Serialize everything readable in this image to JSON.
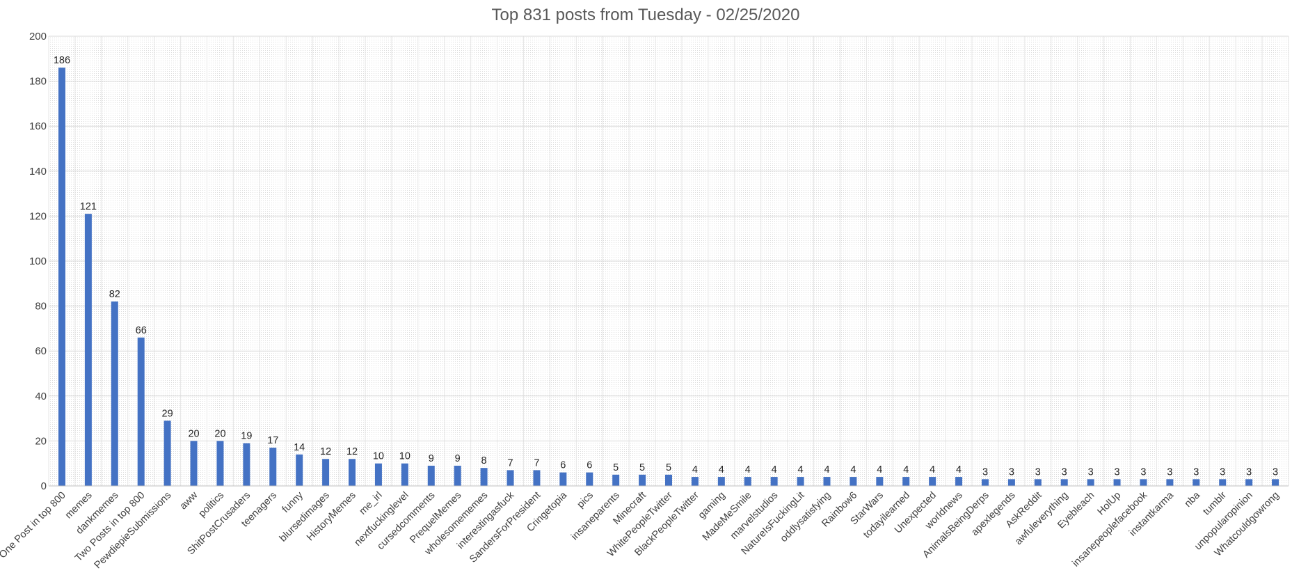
{
  "chart_data": {
    "type": "bar",
    "title": "Top 831 posts from Tuesday - 02/25/2020",
    "xlabel": "",
    "ylabel": "",
    "ylim": [
      0,
      200
    ],
    "yticks": [
      0,
      20,
      40,
      60,
      80,
      100,
      120,
      140,
      160,
      180,
      200
    ],
    "grid": true,
    "legend": "none",
    "bar_color": "#4472C4",
    "categories": [
      "One Post in top 800",
      "memes",
      "dankmemes",
      "Two Posts in top 800",
      "PewdiepieSubmissions",
      "aww",
      "politics",
      "ShitPostCrusaders",
      "teenagers",
      "funny",
      "blursedimages",
      "HistoryMemes",
      "me_irl",
      "nextfuckinglevel",
      "cursedcomments",
      "PrequelMemes",
      "wholesomememes",
      "interestingasfuck",
      "SandersForPresident",
      "Cringetopia",
      "pics",
      "insaneparents",
      "Minecraft",
      "WhitePeopleTwitter",
      "BlackPeopleTwitter",
      "gaming",
      "MadeMeSmile",
      "marvelstudios",
      "NatureIsFuckingLit",
      "oddlysatisfying",
      "Rainbow6",
      "StarWars",
      "todayilearned",
      "Unexpected",
      "worldnews",
      "AnimalsBeingDerps",
      "apexlegends",
      "AskReddit",
      "awfuleverything",
      "Eyebleach",
      "HolUp",
      "insanepeoplefacebook",
      "instantkarma",
      "nba",
      "tumblr",
      "unpopularopinion",
      "Whatcouldgowrong"
    ],
    "values": [
      186,
      121,
      82,
      66,
      29,
      20,
      20,
      19,
      17,
      14,
      12,
      12,
      10,
      10,
      9,
      9,
      8,
      7,
      7,
      6,
      6,
      5,
      5,
      5,
      4,
      4,
      4,
      4,
      4,
      4,
      4,
      4,
      4,
      4,
      4,
      3,
      3,
      3,
      3,
      3,
      3,
      3,
      3,
      3,
      3,
      3,
      3
    ],
    "data_labels": true
  }
}
